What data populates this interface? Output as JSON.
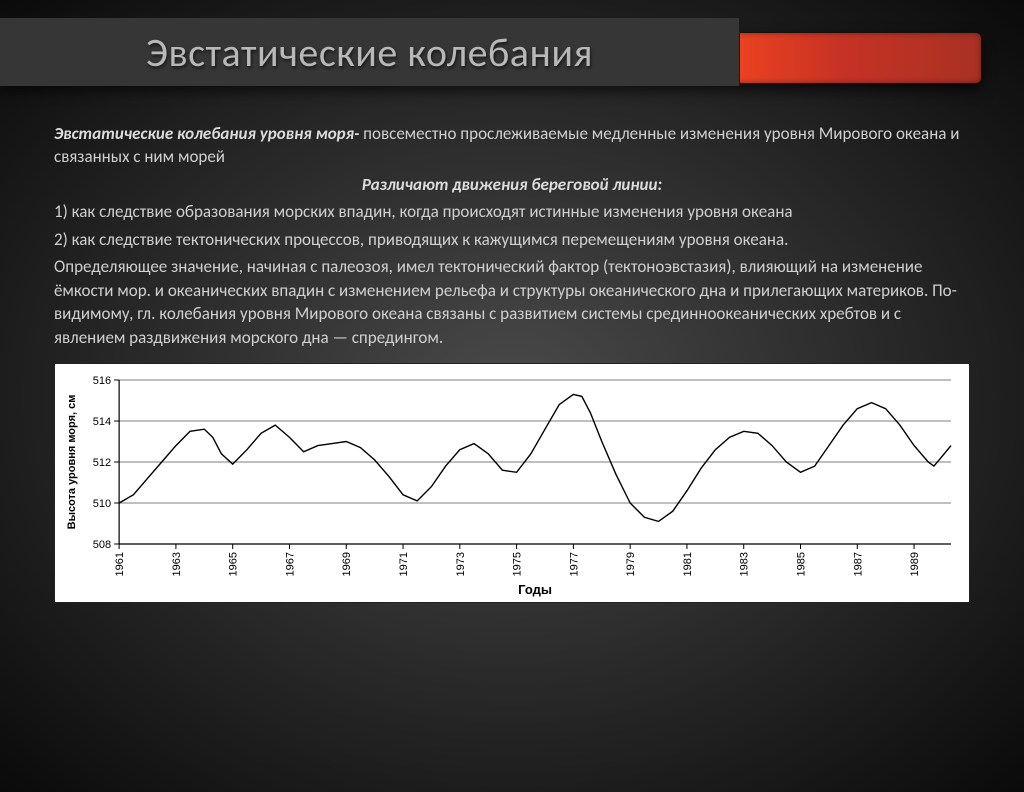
{
  "title": "Эвстатические колебания",
  "intro": {
    "bold": "Эвстатические колебания уровня моря- ",
    "rest": "повсеместно прослеживаемые медленные изменения уровня Мирового океана и связанных с ним морей"
  },
  "subheader": "Различают движения береговой линии:",
  "item1": "1) как следствие образования морских впадин, когда происходят истинные изменения уровня океана",
  "item2": "2) как следствие тектонических процессов, приводящих к кажущимся перемещениям уровня океана.",
  "body": "Определяющее значение, начиная с палеозоя, имел тектонический фактор (тектоноэвстазия), влияющий на изменение ёмкости мор. и океанических впадин с изменением рельефа и структуры океанического дна и прилегающих материков. По-видимому, гл. колебания уровня Мирового океана связаны с развитием системы срединноокеанических хребтов и с явлением раздвижения морского дна — спредингом.",
  "chart": {
    "type": "line",
    "xlabel": "Годы",
    "ylabel": "Высота уровня моря, см",
    "ylim": [
      508,
      516
    ],
    "ytick_step": 2,
    "x_ticks": [
      1961,
      1963,
      1965,
      1967,
      1969,
      1971,
      1973,
      1975,
      1977,
      1979,
      1981,
      1983,
      1985,
      1987,
      1989
    ],
    "background_color": "#ffffff",
    "line_color": "#000000",
    "line_width": 1.4,
    "data": [
      [
        1961.0,
        510.0
      ],
      [
        1961.5,
        510.4
      ],
      [
        1962.0,
        511.2
      ],
      [
        1962.5,
        512.0
      ],
      [
        1963.0,
        512.8
      ],
      [
        1963.5,
        513.5
      ],
      [
        1964.0,
        513.6
      ],
      [
        1964.3,
        513.2
      ],
      [
        1964.6,
        512.4
      ],
      [
        1965.0,
        511.9
      ],
      [
        1965.5,
        512.6
      ],
      [
        1966.0,
        513.4
      ],
      [
        1966.5,
        513.8
      ],
      [
        1967.0,
        513.2
      ],
      [
        1967.5,
        512.5
      ],
      [
        1968.0,
        512.8
      ],
      [
        1968.5,
        512.9
      ],
      [
        1969.0,
        513.0
      ],
      [
        1969.5,
        512.7
      ],
      [
        1970.0,
        512.1
      ],
      [
        1970.5,
        511.3
      ],
      [
        1971.0,
        510.4
      ],
      [
        1971.5,
        510.1
      ],
      [
        1972.0,
        510.8
      ],
      [
        1972.5,
        511.8
      ],
      [
        1973.0,
        512.6
      ],
      [
        1973.5,
        512.9
      ],
      [
        1974.0,
        512.4
      ],
      [
        1974.5,
        511.6
      ],
      [
        1975.0,
        511.5
      ],
      [
        1975.5,
        512.4
      ],
      [
        1976.0,
        513.6
      ],
      [
        1976.5,
        514.8
      ],
      [
        1977.0,
        515.3
      ],
      [
        1977.3,
        515.2
      ],
      [
        1977.6,
        514.4
      ],
      [
        1978.0,
        513.0
      ],
      [
        1978.5,
        511.4
      ],
      [
        1979.0,
        510.0
      ],
      [
        1979.5,
        509.3
      ],
      [
        1980.0,
        509.1
      ],
      [
        1980.5,
        509.6
      ],
      [
        1981.0,
        510.6
      ],
      [
        1981.5,
        511.7
      ],
      [
        1982.0,
        512.6
      ],
      [
        1982.5,
        513.2
      ],
      [
        1983.0,
        513.5
      ],
      [
        1983.5,
        513.4
      ],
      [
        1984.0,
        512.8
      ],
      [
        1984.5,
        512.0
      ],
      [
        1985.0,
        511.5
      ],
      [
        1985.5,
        511.8
      ],
      [
        1986.0,
        512.8
      ],
      [
        1986.5,
        513.8
      ],
      [
        1987.0,
        514.6
      ],
      [
        1987.5,
        514.9
      ],
      [
        1988.0,
        514.6
      ],
      [
        1988.5,
        513.8
      ],
      [
        1989.0,
        512.8
      ],
      [
        1989.5,
        512.0
      ],
      [
        1989.7,
        511.8
      ],
      [
        1990.0,
        512.3
      ],
      [
        1990.3,
        512.8
      ]
    ]
  }
}
